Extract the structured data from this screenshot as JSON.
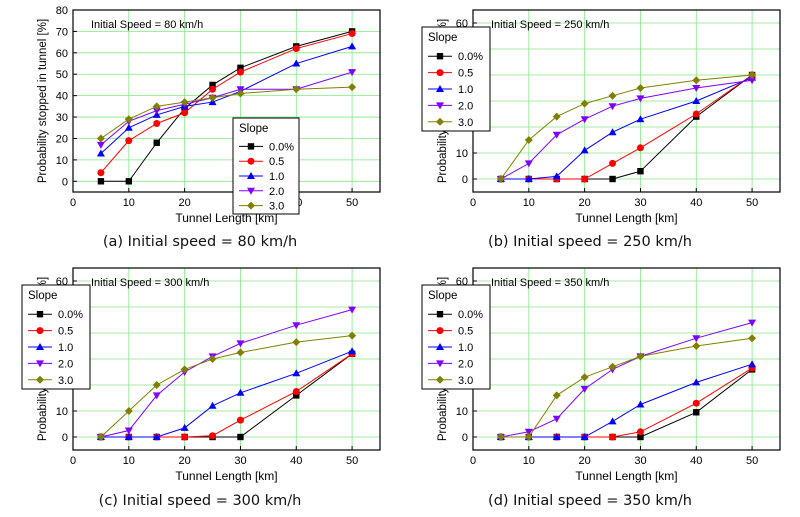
{
  "colors": {
    "0.0%": "#000000",
    "0.5": "#ff0000",
    "1.0": "#0000ff",
    "2.0": "#8000ff",
    "3.0": "#808000",
    "grid": "#86e886"
  },
  "chart_data": [
    {
      "type": "line",
      "caption": "(a) Initial speed = 80 km/h",
      "annotation": "Initial Speed = 80 km/h",
      "xlabel": "Tunnel Length [km]",
      "ylabel": "Probability stopped in tunnel [%]",
      "xlim": [
        0,
        55
      ],
      "ylim": [
        -5,
        80
      ],
      "xticks": [
        0,
        10,
        20,
        30,
        40,
        50
      ],
      "yticks": [
        0,
        10,
        20,
        30,
        40,
        50,
        60,
        70,
        80
      ],
      "grid": true,
      "legend_title": "Slope",
      "legend_position": "bottom-right",
      "x": [
        5,
        10,
        15,
        20,
        25,
        30,
        40,
        50
      ],
      "series": [
        {
          "name": "0.0%",
          "marker": "square",
          "values": [
            0,
            0,
            18,
            34,
            45,
            53,
            63,
            70
          ]
        },
        {
          "name": "0.5",
          "marker": "circle",
          "values": [
            4,
            19,
            27,
            32,
            43,
            51,
            62,
            69
          ]
        },
        {
          "name": "1.0",
          "marker": "triangle-up",
          "values": [
            13,
            25,
            31,
            35,
            37,
            42,
            55,
            63
          ]
        },
        {
          "name": "2.0",
          "marker": "triangle-down",
          "values": [
            17,
            28,
            33,
            36,
            39,
            43,
            43,
            51
          ]
        },
        {
          "name": "3.0",
          "marker": "diamond",
          "values": [
            20,
            29,
            35,
            37,
            39,
            41,
            43,
            44
          ]
        }
      ]
    },
    {
      "type": "line",
      "caption": "(b) Initial speed = 250 km/h",
      "annotation": "Initial Speed = 250 km/h",
      "xlabel": "Tunnel Length [km]",
      "ylabel": "Probability stopped in tunnel [%]",
      "xlim": [
        0,
        55
      ],
      "ylim": [
        -5,
        65
      ],
      "xticks": [
        0,
        10,
        20,
        30,
        40,
        50
      ],
      "yticks": [
        0,
        10,
        20,
        30,
        40,
        50,
        60
      ],
      "grid": true,
      "legend_title": "Slope",
      "legend_position": "top-left",
      "x": [
        5,
        10,
        15,
        20,
        25,
        30,
        40,
        50
      ],
      "series": [
        {
          "name": "0.0%",
          "marker": "square",
          "values": [
            0,
            0,
            0,
            0,
            0,
            3,
            24,
            40
          ]
        },
        {
          "name": "0.5",
          "marker": "circle",
          "values": [
            0,
            0,
            0,
            0,
            6,
            12,
            25,
            40
          ]
        },
        {
          "name": "1.0",
          "marker": "triangle-up",
          "values": [
            0,
            0,
            1,
            11,
            18,
            23,
            30,
            39
          ]
        },
        {
          "name": "2.0",
          "marker": "triangle-down",
          "values": [
            0,
            6,
            17,
            23,
            28,
            31,
            35,
            38
          ]
        },
        {
          "name": "3.0",
          "marker": "diamond",
          "values": [
            0,
            15,
            24,
            29,
            32,
            35,
            38,
            40
          ]
        }
      ]
    },
    {
      "type": "line",
      "caption": "(c) Initial speed = 300 km/h",
      "annotation": "Initial Speed = 300 km/h",
      "xlabel": "Tunnel Length [km]",
      "ylabel": "Probability stopped in tunnel [%]",
      "xlim": [
        0,
        55
      ],
      "ylim": [
        -5,
        65
      ],
      "xticks": [
        0,
        10,
        20,
        30,
        40,
        50
      ],
      "yticks": [
        0,
        10,
        20,
        30,
        40,
        50,
        60
      ],
      "grid": true,
      "legend_title": "Slope",
      "legend_position": "top-left",
      "x": [
        5,
        10,
        15,
        20,
        25,
        30,
        40,
        50
      ],
      "series": [
        {
          "name": "0.0%",
          "marker": "square",
          "values": [
            0,
            0,
            0,
            0,
            0,
            0,
            16,
            32
          ]
        },
        {
          "name": "0.5",
          "marker": "circle",
          "values": [
            0,
            0,
            0,
            0,
            0.5,
            6.5,
            17.5,
            32
          ]
        },
        {
          "name": "1.0",
          "marker": "triangle-up",
          "values": [
            0,
            0,
            0,
            3.5,
            12,
            17,
            24.5,
            33
          ]
        },
        {
          "name": "2.0",
          "marker": "triangle-down",
          "values": [
            0,
            2.5,
            16,
            25,
            31,
            36,
            43,
            49
          ]
        },
        {
          "name": "3.0",
          "marker": "diamond",
          "values": [
            0,
            10,
            20,
            26,
            30,
            32.5,
            36.5,
            39
          ]
        }
      ]
    },
    {
      "type": "line",
      "caption": "(d) Initial speed = 350 km/h",
      "annotation": "Initial Speed = 350 km/h",
      "xlabel": "Tunnel Length [km]",
      "ylabel": "Probability stopped in tunnel [%]",
      "xlim": [
        0,
        55
      ],
      "ylim": [
        -5,
        65
      ],
      "xticks": [
        0,
        10,
        20,
        30,
        40,
        50
      ],
      "yticks": [
        0,
        10,
        20,
        30,
        40,
        50,
        60
      ],
      "grid": true,
      "legend_title": "Slope",
      "legend_position": "top-left",
      "x": [
        5,
        10,
        15,
        20,
        25,
        30,
        40,
        50
      ],
      "series": [
        {
          "name": "0.0%",
          "marker": "square",
          "values": [
            0,
            0,
            0,
            0,
            0,
            0,
            9.5,
            26
          ]
        },
        {
          "name": "0.5",
          "marker": "circle",
          "values": [
            0,
            0,
            0,
            0,
            0,
            2,
            13,
            26.5
          ]
        },
        {
          "name": "1.0",
          "marker": "triangle-up",
          "values": [
            0,
            0,
            0,
            0,
            6,
            12.5,
            21,
            28
          ]
        },
        {
          "name": "2.0",
          "marker": "triangle-down",
          "values": [
            0,
            2,
            7,
            18.5,
            26,
            31,
            38,
            44
          ]
        },
        {
          "name": "3.0",
          "marker": "diamond",
          "values": [
            0,
            0,
            16,
            23,
            27,
            31,
            35,
            38
          ]
        }
      ]
    }
  ]
}
